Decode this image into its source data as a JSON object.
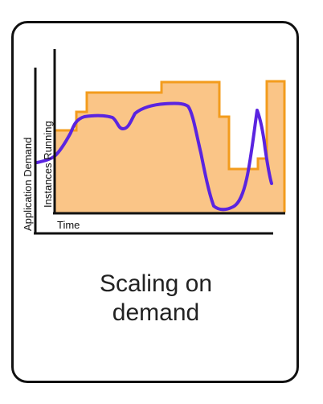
{
  "card": {
    "caption_line1": "Scaling on",
    "caption_line2": "demand"
  },
  "chart_data": {
    "type": "area+line",
    "xlabel": "Time",
    "ylabel_outer": "Application Demand",
    "ylabel_inner": "Instances Running",
    "colors": {
      "capacity_fill": "#fac587",
      "capacity_edge": "#f39c1d",
      "demand_line": "#5a24e0",
      "axis": "#111111"
    },
    "series": []
  }
}
